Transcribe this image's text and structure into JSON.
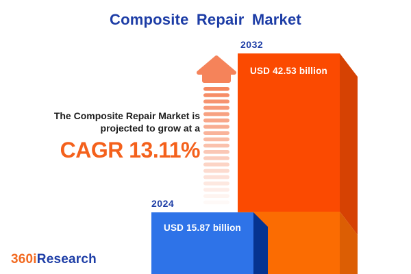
{
  "title": "Composite Repair Market",
  "annotation": {
    "line1": "The Composite Repair Market is",
    "line2": "projected to grow at a",
    "cagr": "CAGR 13.11%"
  },
  "logo": {
    "prefix": "360i",
    "suffix": "Research"
  },
  "chart_data": {
    "type": "bar",
    "title": "Composite Repair Market",
    "orientation": "vertical",
    "categories": [
      "2024",
      "2032"
    ],
    "values": [
      15.87,
      42.53
    ],
    "unit": "USD billion",
    "value_labels": [
      "USD 15.87 billion",
      "USD 42.53 billion"
    ],
    "cagr_percent": 13.11,
    "legend": "none",
    "style": "3d-infographic",
    "colors": {
      "title_blue": "#1d3da6",
      "cagr_orange": "#f4611c",
      "bar_2024_front": "#2e73e8",
      "bar_2024_side": "#053390",
      "bar_2032_front_upper": "#fb4a01",
      "bar_2032_front_lower": "#fb6c02",
      "bar_2032_side_upper": "#d64203",
      "bar_2032_side_lower": "#dc5e04",
      "growth_arrow": "#f5835a",
      "value_text": "#ffffff",
      "background": "#ffffff"
    }
  }
}
